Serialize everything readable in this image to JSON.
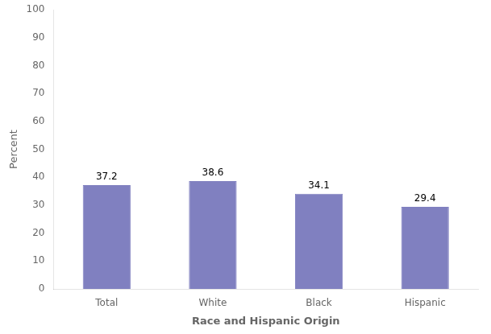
{
  "chart_data": {
    "type": "bar",
    "categories": [
      "Total",
      "White",
      "Black",
      "Hispanic"
    ],
    "values": [
      37.2,
      38.6,
      34.1,
      29.4
    ],
    "color": "#8080C0",
    "xlabel": "Race and Hispanic Origin",
    "ylabel": "Percent",
    "ylim": [
      0,
      100
    ],
    "yticks": [
      0,
      10,
      20,
      30,
      40,
      50,
      60,
      70,
      80,
      90,
      100
    ],
    "grid": false,
    "data_labels": true
  }
}
